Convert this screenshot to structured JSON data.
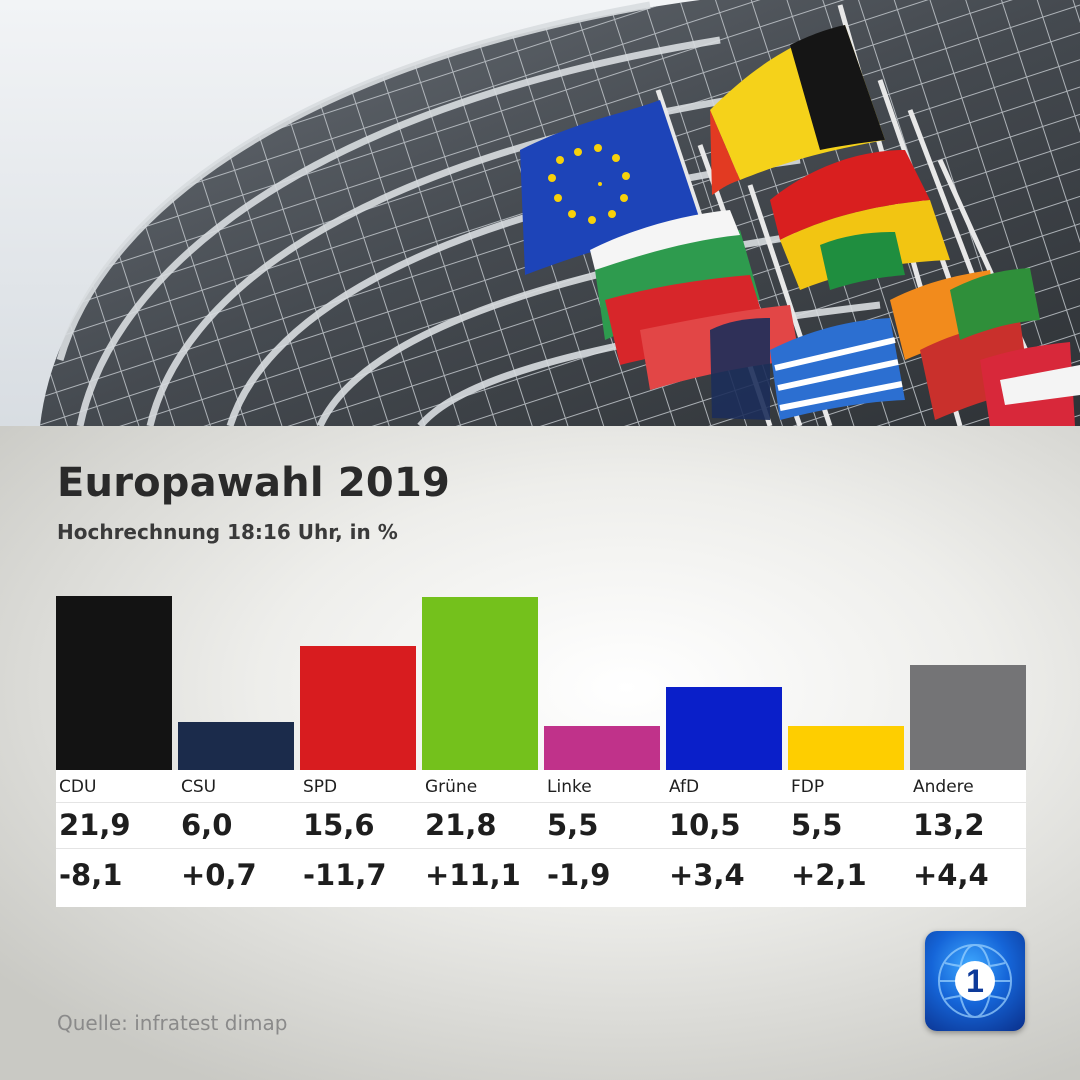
{
  "title": "Europawahl 2019",
  "subtitle": "Hochrechnung 18:16 Uhr, in %",
  "source": "Quelle: infratest dimap",
  "logo_text": "1",
  "chart_data": {
    "type": "bar",
    "title": "Europawahl 2019",
    "subtitle": "Hochrechnung 18:16 Uhr, in %",
    "categories": [
      "CDU",
      "CSU",
      "SPD",
      "Grüne",
      "Linke",
      "AfD",
      "FDP",
      "Andere"
    ],
    "series": [
      {
        "values": [
          21.9,
          6.0,
          15.6,
          21.8,
          5.5,
          10.5,
          5.5,
          13.2
        ]
      }
    ],
    "value_labels": [
      "21,9",
      "6,0",
      "15,6",
      "21,8",
      "5,5",
      "10,5",
      "5,5",
      "13,2"
    ],
    "change_labels": [
      "-8,1",
      "+0,7",
      "-11,7",
      "+11,1",
      "-1,9",
      "+3,4",
      "+2,1",
      "+4,4"
    ],
    "changes": [
      -8.1,
      0.7,
      -11.7,
      11.1,
      -1.9,
      3.4,
      2.1,
      4.4
    ],
    "colors": [
      "#131313",
      "#1b2b4b",
      "#d81c1f",
      "#74c11c",
      "#c0328a",
      "#0a1fc9",
      "#fece00",
      "#747476"
    ],
    "ylim": [
      0,
      21.9
    ],
    "grid": false,
    "legend": "none"
  }
}
